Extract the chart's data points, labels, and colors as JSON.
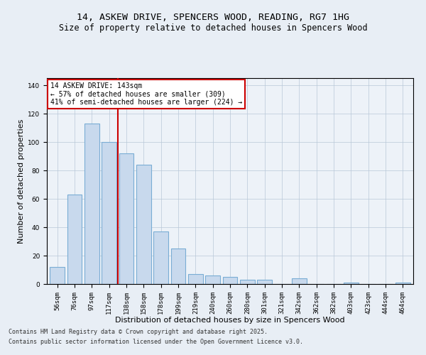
{
  "title_line1": "14, ASKEW DRIVE, SPENCERS WOOD, READING, RG7 1HG",
  "title_line2": "Size of property relative to detached houses in Spencers Wood",
  "xlabel": "Distribution of detached houses by size in Spencers Wood",
  "ylabel": "Number of detached properties",
  "categories": [
    "56sqm",
    "76sqm",
    "97sqm",
    "117sqm",
    "138sqm",
    "158sqm",
    "178sqm",
    "199sqm",
    "219sqm",
    "240sqm",
    "260sqm",
    "280sqm",
    "301sqm",
    "321sqm",
    "342sqm",
    "362sqm",
    "382sqm",
    "403sqm",
    "423sqm",
    "444sqm",
    "464sqm"
  ],
  "values": [
    12,
    63,
    113,
    100,
    92,
    84,
    37,
    25,
    7,
    6,
    5,
    3,
    3,
    0,
    4,
    0,
    0,
    1,
    0,
    0,
    1
  ],
  "bar_color": "#c8d9ed",
  "bar_edge_color": "#7aadd4",
  "vline_x": 4.0,
  "vline_color": "#cc0000",
  "annotation_text": "14 ASKEW DRIVE: 143sqm\n← 57% of detached houses are smaller (309)\n41% of semi-detached houses are larger (224) →",
  "annotation_box_color": "#ffffff",
  "annotation_box_edge": "#cc0000",
  "ylim": [
    0,
    145
  ],
  "yticks": [
    0,
    20,
    40,
    60,
    80,
    100,
    120,
    140
  ],
  "footer_line1": "Contains HM Land Registry data © Crown copyright and database right 2025.",
  "footer_line2": "Contains public sector information licensed under the Open Government Licence v3.0.",
  "bg_color": "#e8eef5",
  "plot_bg_color": "#edf2f8",
  "title_fontsize": 9.5,
  "subtitle_fontsize": 8.5,
  "tick_fontsize": 6.5,
  "xlabel_fontsize": 8,
  "ylabel_fontsize": 8,
  "footer_fontsize": 6,
  "annot_fontsize": 7
}
